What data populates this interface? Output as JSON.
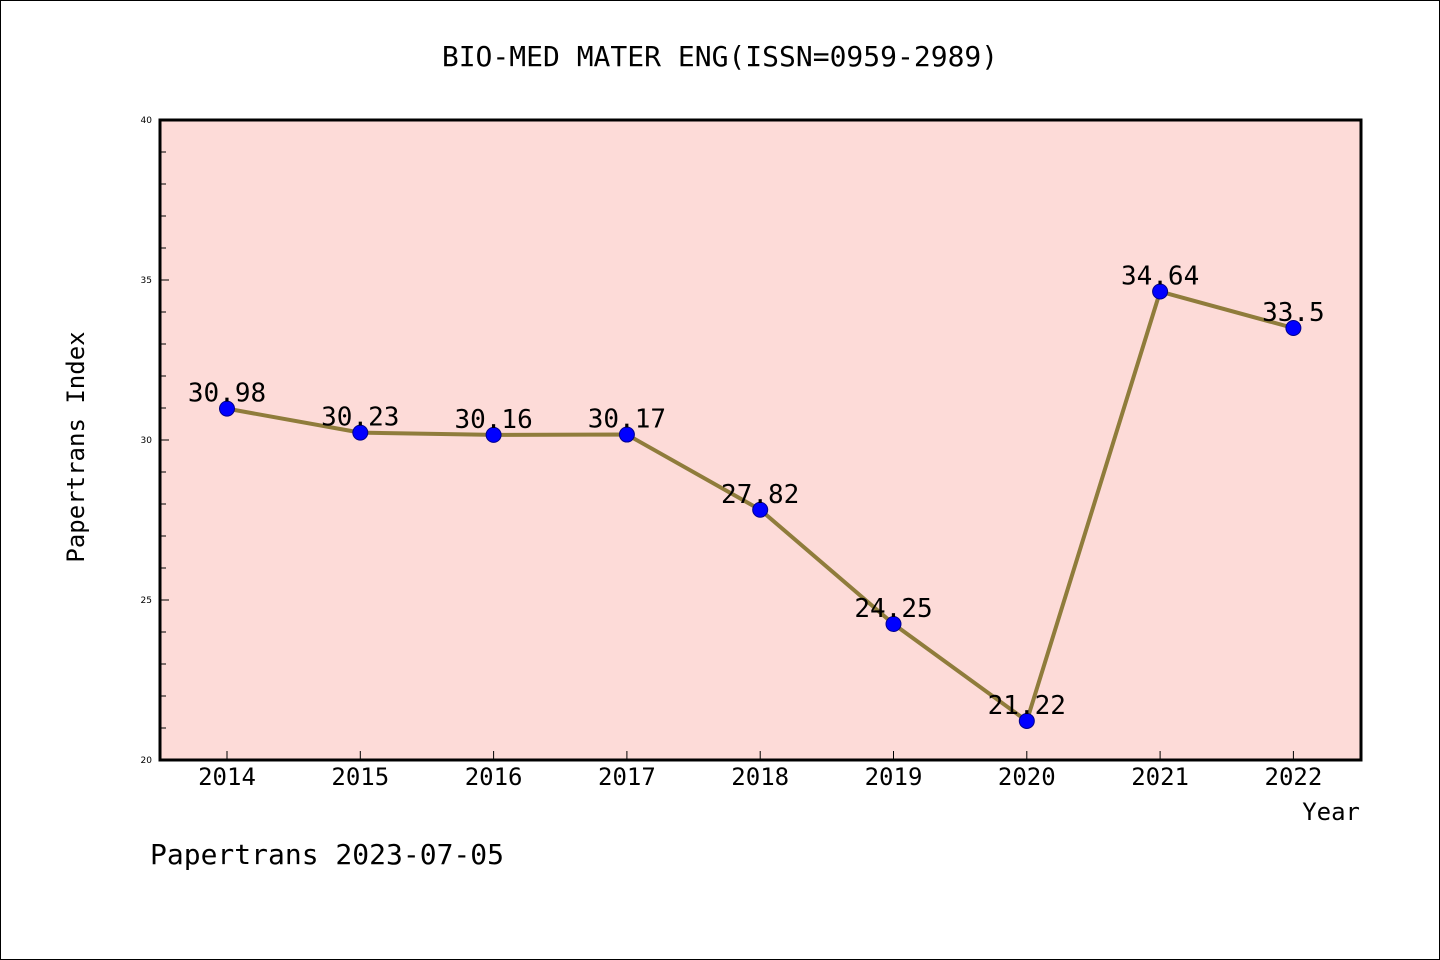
{
  "chart_data": {
    "type": "line",
    "title": "BIO-MED MATER ENG(ISSN=0959-2989)",
    "xlabel": "Year",
    "ylabel": "Papertrans Index",
    "categories": [
      "2014",
      "2015",
      "2016",
      "2017",
      "2018",
      "2019",
      "2020",
      "2021",
      "2022"
    ],
    "series": [
      {
        "values": [
          30.98,
          30.23,
          30.16,
          30.17,
          27.82,
          24.25,
          21.22,
          34.64,
          33.5
        ],
        "data_labels": [
          "30.98",
          "30.23",
          "30.16",
          "30.17",
          "27.82",
          "24.25",
          "21.22",
          "34.64",
          "33.5"
        ]
      }
    ],
    "ylim": [
      20,
      40
    ],
    "yticks": [
      "20",
      "25",
      "30",
      "35",
      "40"
    ],
    "grid": false,
    "legend": "none",
    "colors": {
      "plot_background": "#fddbd8",
      "line": "#8f7c3b",
      "marker": "#0000ff",
      "marker_edge": "#00008b"
    },
    "footer": "Papertrans 2023-07-05"
  }
}
